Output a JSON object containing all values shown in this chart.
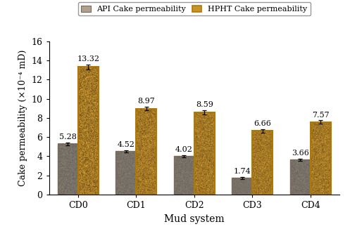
{
  "categories": [
    "CD0",
    "CD1",
    "CD2",
    "CD3",
    "CD4"
  ],
  "api_values": [
    5.28,
    4.52,
    4.02,
    1.74,
    3.66
  ],
  "hpht_values": [
    13.32,
    8.97,
    8.59,
    6.66,
    7.57
  ],
  "api_errors": [
    0.15,
    0.12,
    0.12,
    0.1,
    0.1
  ],
  "hpht_errors": [
    0.25,
    0.2,
    0.2,
    0.18,
    0.18
  ],
  "api_face_color": "#b0a090",
  "api_edge_color": "#7a6a5a",
  "hpht_face_color": "#c8942a",
  "hpht_edge_color": "#b07800",
  "xlabel": "Mud system",
  "ylabel": "Cake permeability (×10⁻⁴ mD)",
  "ylim": [
    0,
    16
  ],
  "yticks": [
    0,
    2,
    4,
    6,
    8,
    10,
    12,
    14,
    16
  ],
  "legend_api": "API Cake permeability",
  "legend_hpht": "HPHT Cake permeability",
  "bar_width": 0.35,
  "label_fontsize": 8,
  "axis_fontsize": 9,
  "legend_fontsize": 8
}
